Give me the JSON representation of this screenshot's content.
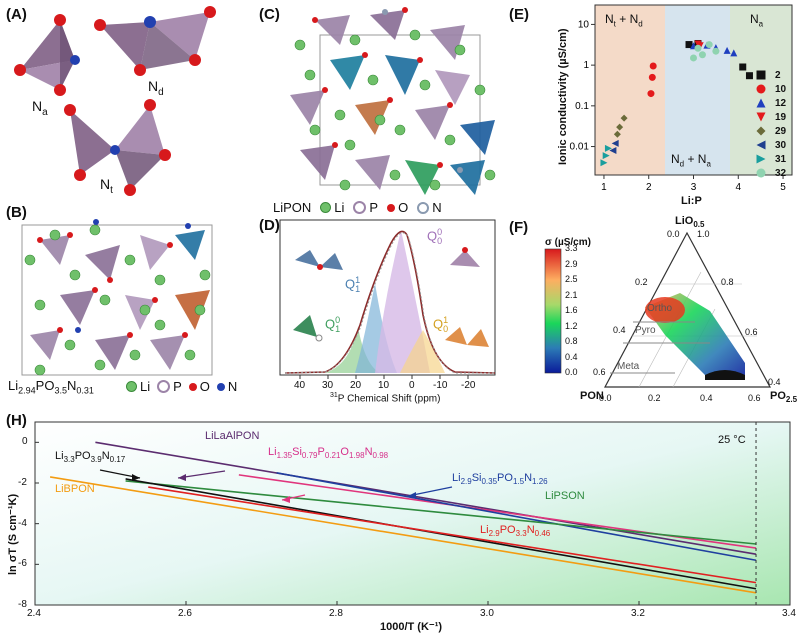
{
  "panels": {
    "A": {
      "label": "(A)",
      "sites": [
        "N",
        "N",
        "N"
      ],
      "site_subs": [
        "a",
        "d",
        "t"
      ]
    },
    "B": {
      "label": "(B)",
      "formula": {
        "parts": [
          "Li",
          "2.94",
          "PO",
          "3.5",
          "N",
          "0.31"
        ]
      },
      "legend": [
        "Li",
        "P",
        "O",
        "N"
      ]
    },
    "C": {
      "label": "(C)",
      "name": "LiPON",
      "legend": [
        "Li",
        "P",
        "O",
        "N"
      ]
    },
    "D": {
      "label": "(D)",
      "xlabel_sup": "31",
      "xlabel": "P Chemical Shift (ppm)",
      "ticks": [
        "40",
        "30",
        "20",
        "10",
        "0",
        "-10",
        "-20"
      ],
      "q_labels": [
        {
          "base": "Q",
          "sup": "0",
          "sub": "0"
        },
        {
          "base": "Q",
          "sup": "1",
          "sub": "1"
        },
        {
          "base": "Q",
          "sup": "0",
          "sub": "1"
        },
        {
          "base": "Q",
          "sup": "1",
          "sub": "0"
        }
      ]
    },
    "E": {
      "label": "(E)",
      "regions": [
        {
          "text": "N",
          "sub": "t",
          "mid": " + N",
          "sub2": "d"
        },
        {
          "text": "N",
          "sub": "d",
          "mid": " + N",
          "sub2": "a"
        },
        {
          "text": "N",
          "sub": "a",
          "mid": "",
          "sub2": ""
        }
      ],
      "legend": [
        "2",
        "10",
        "12",
        "19",
        "29",
        "30",
        "31",
        "32"
      ]
    },
    "F": {
      "label": "(F)",
      "colorbar_title": "σ (µS/cm)",
      "colorbar_ticks": [
        "3.3",
        "2.9",
        "2.5",
        "2.1",
        "1.6",
        "1.2",
        "0.8",
        "0.4",
        "0.0"
      ],
      "vertex_top": "LiO",
      "vertex_top_sub": "0.5",
      "vertex_left": "PON",
      "vertex_right": "PO",
      "vertex_right_sub": "2.5",
      "region_labels": [
        "Ortho",
        "Pyro",
        "Meta"
      ],
      "left_ticks": [
        "0.2",
        "0.4",
        "0.6"
      ],
      "right_ticks": [
        "1.0",
        "0.8",
        "0.6",
        "0.4"
      ],
      "bottom_ticks": [
        "0.0",
        "0.2",
        "0.4",
        "0.6"
      ],
      "top_zero": "0.0"
    },
    "H": {
      "label": "(H)",
      "temp_label": "25 °C"
    }
  },
  "chart_data": [
    {
      "type": "scatter",
      "panel": "E",
      "xlabel": "Li:P",
      "ylabel": "Ionic conductivity (µS/cm)",
      "yscale": "log",
      "xlim": [
        0.8,
        5.2
      ],
      "ylim": [
        0.002,
        30
      ],
      "xticks": [
        "1",
        "2",
        "3",
        "4",
        "5"
      ],
      "yticks": [
        "0.01",
        "0.1",
        "1",
        "10"
      ],
      "series": [
        {
          "name": "2",
          "marker": "square",
          "color": "#111111",
          "x": [
            2.9,
            3.1,
            4.1,
            4.25
          ],
          "y": [
            3.2,
            3.4,
            0.9,
            0.55
          ]
        },
        {
          "name": "10",
          "marker": "circle",
          "color": "#e41a1c",
          "x": [
            2.05,
            2.08,
            2.1
          ],
          "y": [
            0.2,
            0.5,
            0.95
          ]
        },
        {
          "name": "12",
          "marker": "triangle-up",
          "color": "#1f3fbf",
          "x": [
            3.0,
            3.3,
            3.5,
            3.75,
            3.9
          ],
          "y": [
            3.0,
            3.1,
            2.7,
            2.3,
            2.0
          ]
        },
        {
          "name": "19",
          "marker": "triangle-down",
          "color": "#e41a1c",
          "x": [
            3.1,
            3.15
          ],
          "y": [
            3.3,
            3.0
          ]
        },
        {
          "name": "29",
          "marker": "diamond",
          "color": "#6b6b3a",
          "x": [
            1.3,
            1.35,
            1.45
          ],
          "y": [
            0.02,
            0.03,
            0.05
          ]
        },
        {
          "name": "30",
          "marker": "triangle-left",
          "color": "#1f3f8f",
          "x": [
            1.2,
            1.25
          ],
          "y": [
            0.008,
            0.012
          ]
        },
        {
          "name": "31",
          "marker": "triangle-right",
          "color": "#1a9e9e",
          "x": [
            1.0,
            1.05,
            1.1
          ],
          "y": [
            0.004,
            0.006,
            0.009
          ]
        },
        {
          "name": "32",
          "marker": "circle",
          "color": "#8fd3b0",
          "x": [
            3.0,
            3.1,
            3.2,
            3.35,
            3.5
          ],
          "y": [
            1.5,
            2.6,
            1.8,
            3.2,
            2.2
          ]
        }
      ]
    },
    {
      "type": "line",
      "panel": "H",
      "xlabel": "1000/T (K⁻¹)",
      "ylabel": "ln σT (S cm⁻¹K)",
      "xlim": [
        2.4,
        3.4
      ],
      "ylim": [
        -8,
        1
      ],
      "xticks": [
        "2.4",
        "2.6",
        "2.8",
        "3.0",
        "3.2",
        "3.4"
      ],
      "yticks": [
        "0",
        "-2",
        "-4",
        "-6",
        "-8"
      ],
      "series": [
        {
          "name": "LiLaAlPON",
          "color": "#5b2c6f",
          "x": [
            2.48,
            3.355
          ],
          "y": [
            0.0,
            -5.5
          ]
        },
        {
          "name": "Li1.35Si0.79P0.21O1.98N0.98",
          "color": "#e0357c",
          "x": [
            2.67,
            3.355
          ],
          "y": [
            -1.6,
            -5.2
          ]
        },
        {
          "name": "Li2.9Si0.35PO1.5N1.26",
          "color": "#1f3f9f",
          "x": [
            2.72,
            3.355
          ],
          "y": [
            -1.5,
            -5.8
          ]
        },
        {
          "name": "LiPSON",
          "color": "#2e8b3e",
          "x": [
            2.52,
            3.355
          ],
          "y": [
            -1.9,
            -5.0
          ]
        },
        {
          "name": "Li3.3PO3.9N0.17",
          "color": "#111111",
          "x": [
            2.52,
            3.355
          ],
          "y": [
            -1.8,
            -7.2
          ]
        },
        {
          "name": "Li2.9PO3.3N0.46",
          "color": "#e02020",
          "x": [
            2.55,
            3.355
          ],
          "y": [
            -2.2,
            -6.9
          ]
        },
        {
          "name": "LiBPON",
          "color": "#f39c12",
          "x": [
            2.42,
            3.355
          ],
          "y": [
            -1.7,
            -7.4
          ]
        }
      ],
      "line_labels": [
        {
          "parts": [
            "LiLaAlPON"
          ],
          "color": "#5b2c6f"
        },
        {
          "parts": [
            "Li",
            "1.35",
            "Si",
            "0.79",
            "P",
            "0.21",
            "O",
            "1.98",
            "N",
            "0.98"
          ],
          "color": "#d62f8a"
        },
        {
          "parts": [
            "Li",
            "2.9",
            "Si",
            "0.35",
            "PO",
            "1.5",
            "N",
            "1.26"
          ],
          "color": "#1f3f9f"
        },
        {
          "parts": [
            "LiPSON"
          ],
          "color": "#2e8b3e"
        },
        {
          "parts": [
            "Li",
            "3.3",
            "PO",
            "3.9",
            "N",
            "0.17"
          ],
          "color": "#111111"
        },
        {
          "parts": [
            "Li",
            "2.9",
            "PO",
            "3.3",
            "N",
            "0.46"
          ],
          "color": "#e02020"
        },
        {
          "parts": [
            "LiBPON"
          ],
          "color": "#f39c12"
        }
      ]
    }
  ]
}
